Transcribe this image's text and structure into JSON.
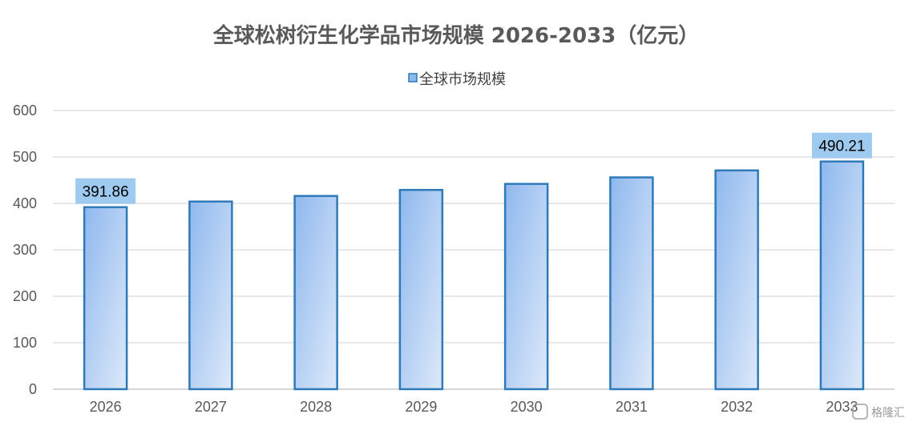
{
  "chart_data": {
    "type": "bar",
    "title": "全球松树衍生化学品市场规模 2026-2033（亿元）",
    "categories": [
      "2026",
      "2027",
      "2028",
      "2029",
      "2030",
      "2031",
      "2032",
      "2033"
    ],
    "series": [
      {
        "name": "全球市场规模",
        "values": [
          391.86,
          404,
          416,
          429,
          442,
          456,
          471,
          490.21
        ]
      }
    ],
    "data_labels": [
      {
        "index": 0,
        "text": "391.86"
      },
      {
        "index": 7,
        "text": "490.21"
      }
    ],
    "ylim": [
      0,
      600
    ],
    "yticks": [
      0,
      100,
      200,
      300,
      400,
      500,
      600
    ],
    "grid": true,
    "legend_position": "top-center",
    "colors": {
      "bar_fill_start": "#8fb8ee",
      "bar_fill_end": "#dde9fa",
      "bar_stroke": "#2e7ab9",
      "label_bg": "#9fcaf0",
      "grid": "#d9d9d9",
      "axis": "#bfbfbf"
    }
  },
  "watermark": "格隆汇"
}
